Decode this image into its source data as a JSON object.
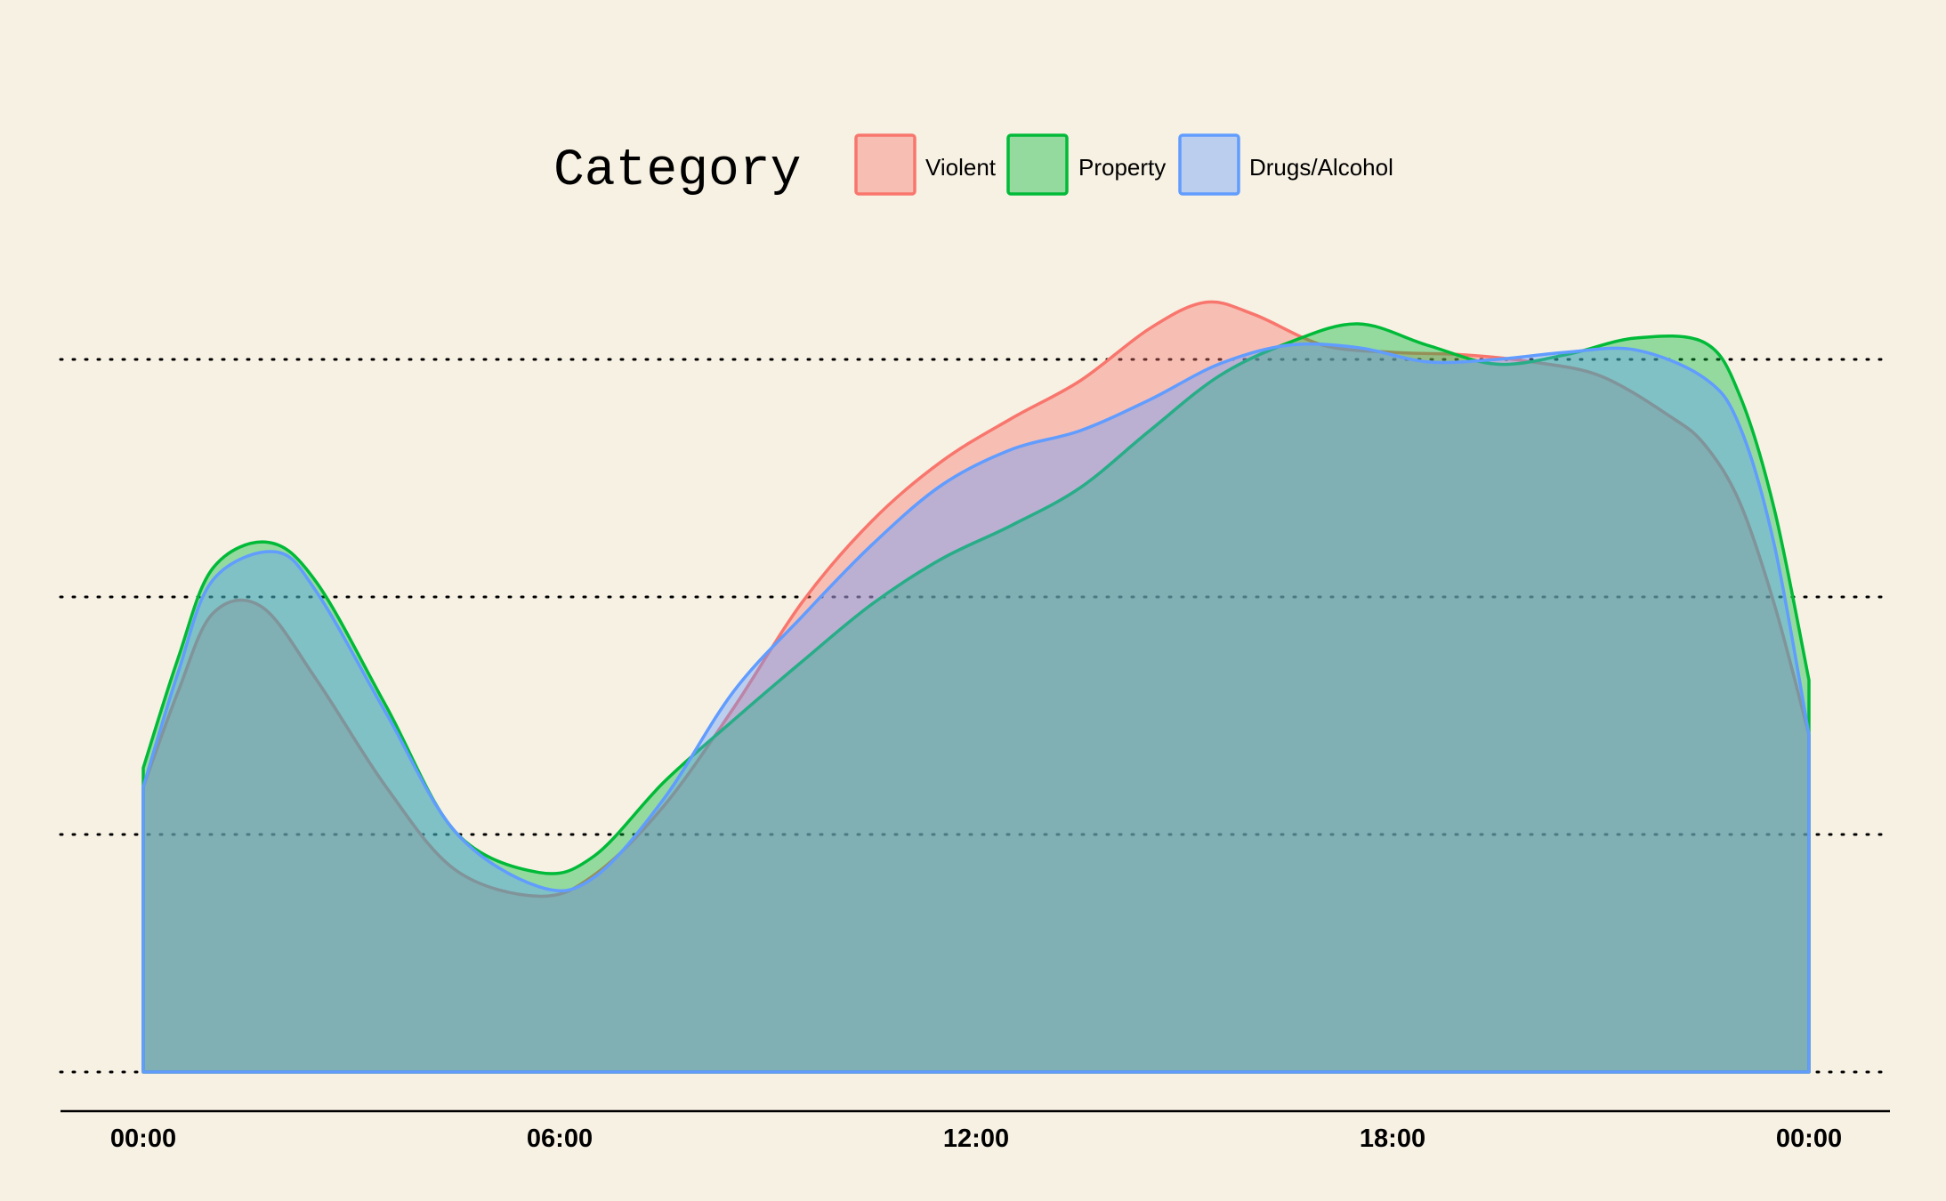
{
  "chart_data": {
    "type": "area",
    "subtype": "density",
    "title": "",
    "xlabel": "",
    "ylabel": "",
    "x_ticks": [
      "00:00",
      "06:00",
      "12:00",
      "18:00",
      "00:00"
    ],
    "x_tick_hours": [
      0,
      6,
      12,
      18,
      24
    ],
    "xlim_hours": [
      0,
      24
    ],
    "y_gridlines": [
      0,
      1,
      2,
      3
    ],
    "ylim": [
      0,
      3
    ],
    "y_ticks_shown": false,
    "grid": "horizontal dotted",
    "legend": {
      "title": "Category",
      "placement": "top-center",
      "entries": [
        "Violent",
        "Property",
        "Drugs/Alcohol"
      ]
    },
    "series": [
      {
        "name": "Violent",
        "color": "#f8766d",
        "fill": "#f8766d",
        "hours": [
          0,
          0.5,
          1,
          1.7,
          2.5,
          3.5,
          4.5,
          5.7,
          6.5,
          7.5,
          8.5,
          9.5,
          10.5,
          11.5,
          12.5,
          13.5,
          14.5,
          15.3,
          16,
          17,
          18,
          19,
          20,
          21,
          22,
          22.5,
          23,
          23.5,
          24
        ],
        "values": [
          1.2,
          1.6,
          1.93,
          1.96,
          1.65,
          1.2,
          0.85,
          0.74,
          0.83,
          1.12,
          1.53,
          1.98,
          2.32,
          2.57,
          2.75,
          2.91,
          3.13,
          3.24,
          3.19,
          3.06,
          3.03,
          3.02,
          2.99,
          2.93,
          2.76,
          2.64,
          2.4,
          1.97,
          1.42
        ]
      },
      {
        "name": "Property",
        "color": "#00ba38",
        "fill": "#00ba38",
        "hours": [
          0,
          0.5,
          1,
          1.8,
          2.5,
          3.5,
          4.5,
          5.7,
          6.5,
          7.5,
          8.5,
          9.5,
          10.5,
          11.5,
          12.5,
          13.5,
          14.5,
          15.5,
          16.5,
          17.5,
          18.5,
          19.5,
          20.5,
          21.5,
          22.5,
          23,
          23.5,
          24
        ],
        "values": [
          1.28,
          1.74,
          2.12,
          2.23,
          2.06,
          1.54,
          1.01,
          0.84,
          0.91,
          1.22,
          1.48,
          1.73,
          1.97,
          2.16,
          2.3,
          2.46,
          2.7,
          2.93,
          3.07,
          3.15,
          3.06,
          2.98,
          3.02,
          3.09,
          3.07,
          2.85,
          2.37,
          1.65
        ]
      },
      {
        "name": "Drugs/Alcohol",
        "color": "#619cff",
        "fill": "#619cff",
        "hours": [
          0,
          0.5,
          1,
          1.9,
          2.5,
          3.5,
          4.5,
          5.7,
          6.5,
          7.5,
          8.5,
          9.5,
          10.5,
          11.5,
          12.5,
          13.5,
          14.5,
          15.5,
          16.5,
          17.5,
          18.5,
          19.5,
          20.5,
          21.5,
          22.5,
          23,
          23.5,
          24
        ],
        "values": [
          1.2,
          1.68,
          2.07,
          2.19,
          2.02,
          1.51,
          1.01,
          0.78,
          0.82,
          1.15,
          1.6,
          1.92,
          2.22,
          2.47,
          2.62,
          2.7,
          2.83,
          2.98,
          3.06,
          3.05,
          2.99,
          3.0,
          3.03,
          3.04,
          2.92,
          2.72,
          2.22,
          1.42
        ]
      }
    ]
  }
}
